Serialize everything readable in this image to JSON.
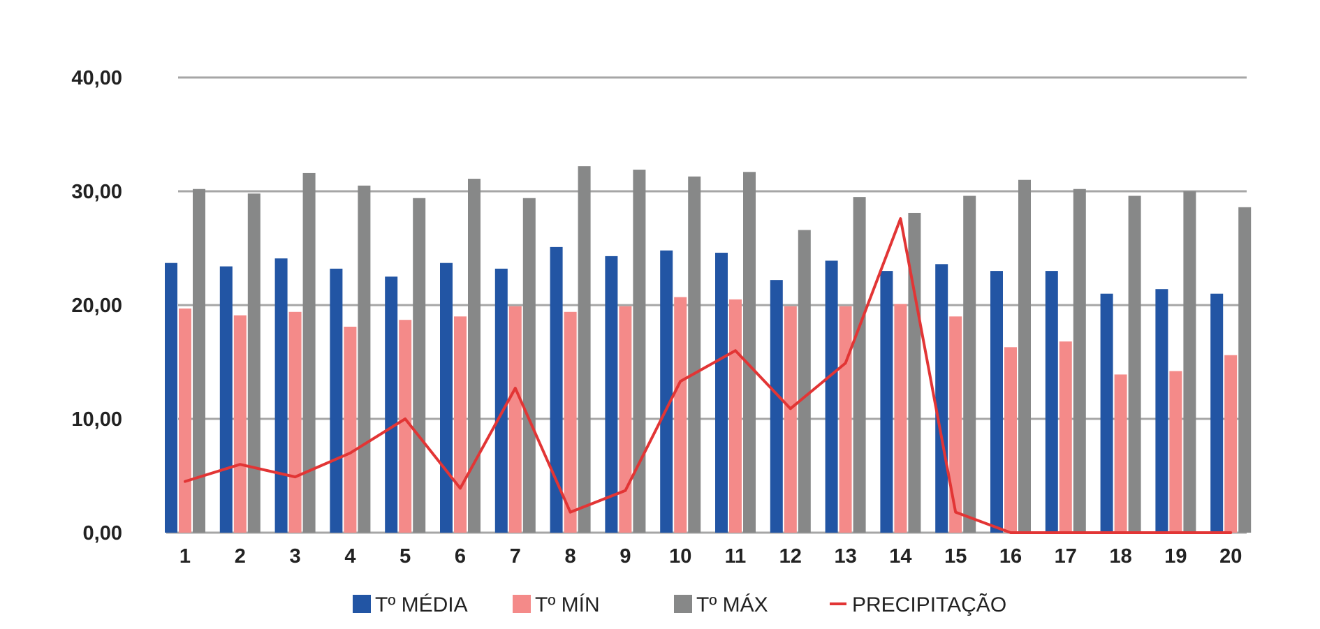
{
  "chart_data": {
    "type": "bar",
    "categories": [
      "1",
      "2",
      "3",
      "4",
      "5",
      "6",
      "7",
      "8",
      "9",
      "10",
      "11",
      "12",
      "13",
      "14",
      "15",
      "16",
      "17",
      "18",
      "19",
      "20"
    ],
    "series": [
      {
        "name": "Tº MÉDIA",
        "type": "bar",
        "color": "#2255a4",
        "values": [
          23.7,
          23.4,
          24.1,
          23.2,
          22.5,
          23.7,
          23.2,
          25.1,
          24.3,
          24.8,
          24.6,
          22.2,
          23.9,
          23.0,
          23.6,
          23.0,
          23.0,
          21.0,
          21.4,
          21.0
        ]
      },
      {
        "name": "Tº MÍN",
        "type": "bar",
        "color": "#f48a89",
        "values": [
          19.7,
          19.1,
          19.4,
          18.1,
          18.7,
          19.0,
          19.9,
          19.4,
          19.9,
          20.7,
          20.5,
          19.9,
          19.9,
          20.1,
          19.0,
          16.3,
          16.8,
          13.9,
          14.2,
          15.6
        ]
      },
      {
        "name": "Tº MÁX",
        "type": "bar",
        "color": "#878888",
        "values": [
          30.2,
          29.8,
          31.6,
          30.5,
          29.4,
          31.1,
          29.4,
          32.2,
          31.9,
          31.3,
          31.7,
          26.6,
          29.5,
          28.1,
          29.6,
          31.0,
          30.2,
          29.6,
          30.0,
          28.6
        ]
      },
      {
        "name": "PRECIPITAÇÃO",
        "type": "line",
        "color": "#e23535",
        "values": [
          4.5,
          6.0,
          4.9,
          7.0,
          10.0,
          3.9,
          12.7,
          1.8,
          3.7,
          13.3,
          16.0,
          10.9,
          14.9,
          27.6,
          1.8,
          0.0,
          0.0,
          0.0,
          0.0,
          0.0
        ]
      }
    ],
    "y_tick_labels": [
      "0,00",
      "10,00",
      "20,00",
      "30,00",
      "40,00"
    ],
    "ylim": [
      0,
      40
    ],
    "grid": true,
    "legend_position": "bottom",
    "title": "",
    "xlabel": "",
    "ylabel": ""
  }
}
